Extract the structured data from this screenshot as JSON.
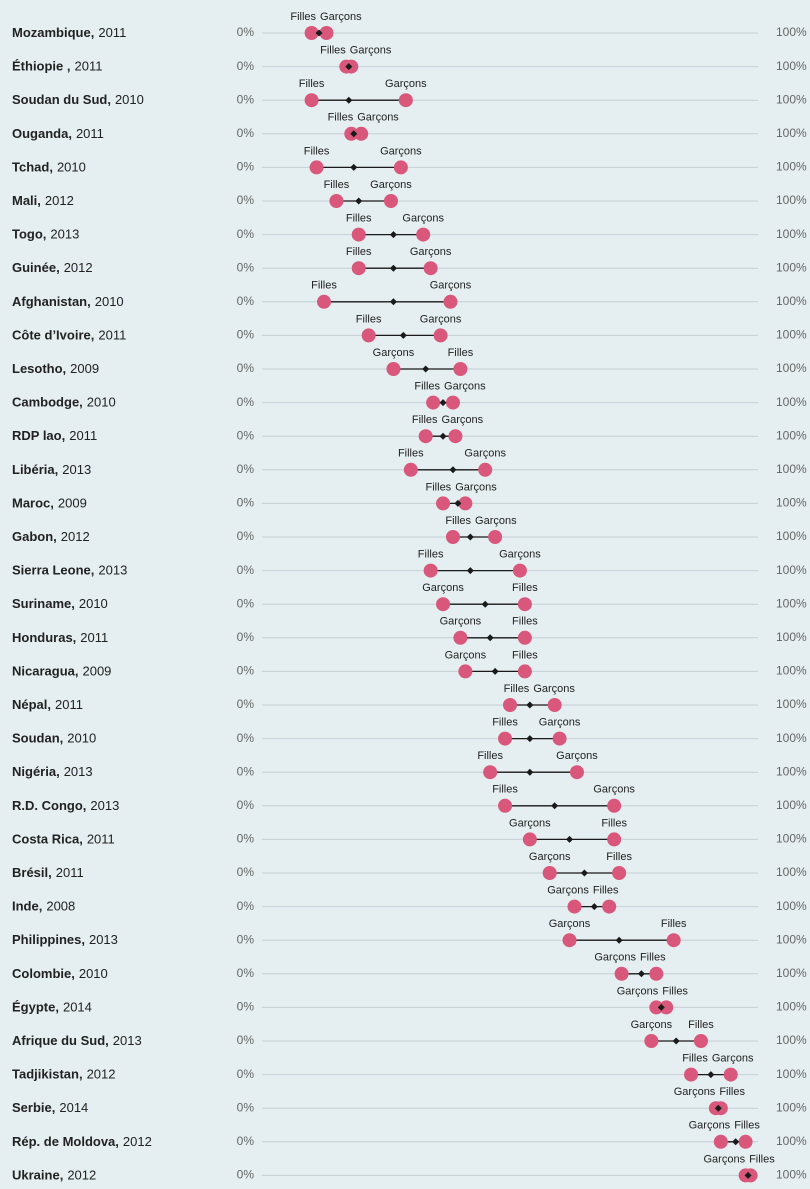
{
  "chart_data": {
    "type": "dumbbell",
    "categories": [
      "Mozambique,",
      "Éthiopie ,",
      "Soudan du Sud,",
      "Ouganda,",
      "Tchad,",
      "Mali,",
      "Togo,",
      "Guinée,",
      "Afghanistan,",
      "Côte d’Ivoire,",
      "Lesotho,",
      "Cambodge,",
      "RDP lao,",
      "Libéria,",
      "Maroc,",
      "Gabon,",
      "Sierra Leone,",
      "Suriname,",
      "Honduras,",
      "Nicaragua,",
      "Népal,",
      "Soudan,",
      "Nigéria,",
      "R.D. Congo,",
      "Costa Rica,",
      "Brésil,",
      "Inde,",
      "Philippines,",
      "Colombie,",
      "Égypte,",
      "Afrique du Sud,",
      "Tadjikistan,",
      "Serbie,",
      "Rép. de Moldova,",
      "Ukraine,"
    ],
    "years": [
      "2011",
      "2011",
      "2010",
      "2011",
      "2010",
      "2012",
      "2013",
      "2012",
      "2010",
      "2011",
      "2009",
      "2010",
      "2011",
      "2013",
      "2009",
      "2012",
      "2013",
      "2010",
      "2011",
      "2009",
      "2011",
      "2010",
      "2013",
      "2013",
      "2011",
      "2011",
      "2008",
      "2013",
      "2010",
      "2014",
      "2013",
      "2012",
      "2014",
      "2012",
      "2012"
    ],
    "series": [
      {
        "name": "Filles",
        "color": "#d9577a",
        "values": [
          10,
          17,
          10,
          18,
          11,
          15,
          19.5,
          19.5,
          12.5,
          21.5,
          40,
          34.5,
          33,
          30,
          36.5,
          38.5,
          34,
          53,
          53,
          53,
          50,
          49,
          46,
          49,
          71,
          72,
          70,
          83,
          79.5,
          81.5,
          88.5,
          86.5,
          92.5,
          97.5,
          98.5
        ]
      },
      {
        "name": "Garçons",
        "color": "#d9577a",
        "values": [
          13,
          18,
          29,
          20,
          28,
          26,
          32.5,
          34,
          38,
          36,
          26.5,
          38.5,
          39,
          45,
          41,
          47,
          52,
          36.5,
          40,
          41,
          59,
          60,
          63.5,
          71,
          54,
          58,
          63,
          62,
          72.5,
          79.5,
          78.5,
          94.5,
          91.5,
          92.5,
          97.5
        ]
      }
    ],
    "totals": [
      11.5,
      17.5,
      17.5,
      18.5,
      18.5,
      19.5,
      26.5,
      26.5,
      26.5,
      28.5,
      33,
      36.5,
      36.5,
      38.5,
      39.5,
      42,
      42,
      45,
      46,
      47,
      54,
      54,
      54,
      59,
      62,
      65,
      67,
      72,
      76.5,
      80.5,
      83.5,
      90.5,
      92,
      95.5,
      98
    ],
    "totals_color": "#1a1a1a",
    "xlim": [
      0,
      100
    ],
    "xticks": [
      {
        "value": 0,
        "label": "0%"
      },
      {
        "value": 100,
        "label": "100%"
      }
    ]
  }
}
